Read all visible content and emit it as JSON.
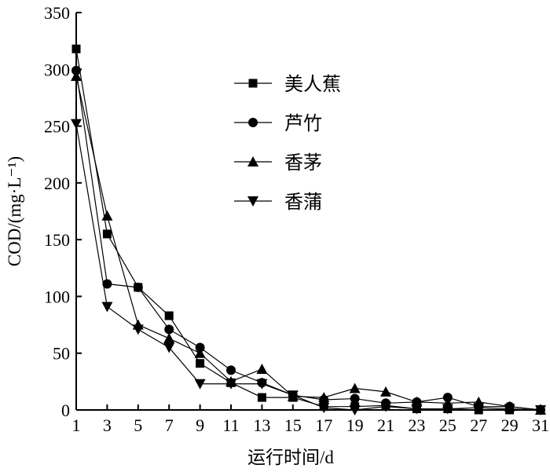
{
  "chart_data": {
    "type": "line",
    "xlabel": "运行时间/d",
    "ylabel": "COD/(mg·L⁻¹)",
    "xticks": [
      1,
      3,
      5,
      7,
      9,
      11,
      13,
      15,
      17,
      19,
      21,
      23,
      25,
      27,
      29,
      31
    ],
    "yticks": [
      0,
      50,
      100,
      150,
      200,
      250,
      300,
      350
    ],
    "xlim": [
      1,
      31
    ],
    "ylim": [
      0,
      350
    ],
    "legend_position": "top-center",
    "grid": false,
    "x": [
      1,
      3,
      5,
      7,
      9,
      11,
      13,
      15,
      17,
      19,
      21,
      23,
      25,
      27,
      29,
      31
    ],
    "series": [
      {
        "name": "美人蕉",
        "marker": "square",
        "values": [
          318,
          155,
          108,
          83,
          41,
          24,
          11,
          11,
          3,
          3,
          4,
          1,
          1,
          0,
          0,
          0
        ]
      },
      {
        "name": "芦竹",
        "marker": "circle",
        "values": [
          299,
          111,
          108,
          71,
          55,
          35,
          24,
          13,
          9,
          10,
          6,
          7,
          11,
          3,
          3,
          0
        ]
      },
      {
        "name": "香茅",
        "marker": "triangle-up",
        "values": [
          294,
          171,
          75,
          63,
          50,
          25,
          36,
          12,
          11,
          19,
          16,
          7,
          6,
          7,
          3,
          0
        ]
      },
      {
        "name": "香蒲",
        "marker": "triangle-down",
        "values": [
          252,
          91,
          71,
          55,
          23,
          23,
          23,
          13,
          2,
          0,
          3,
          1,
          1,
          2,
          1,
          0
        ]
      }
    ]
  }
}
